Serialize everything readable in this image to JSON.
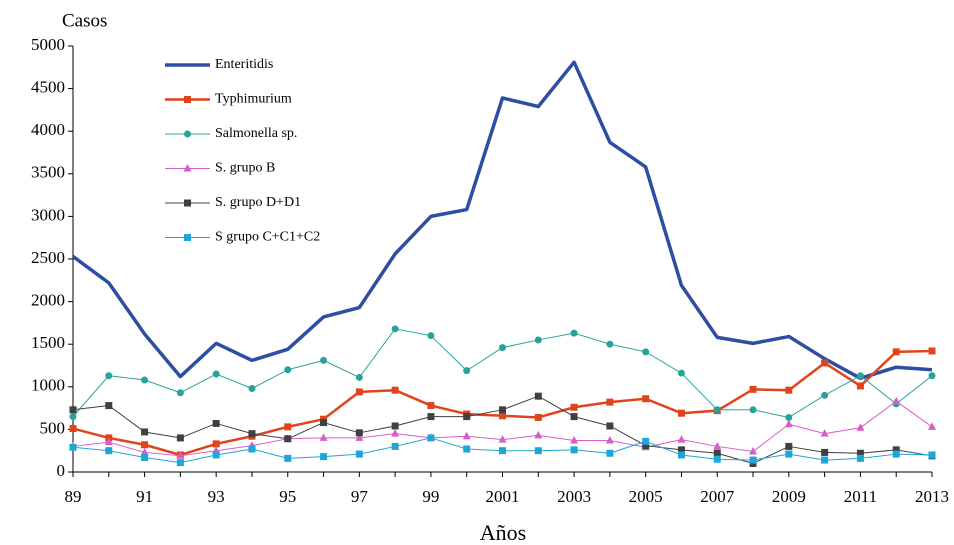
{
  "chart_data": {
    "type": "line",
    "y_label": "Casos",
    "x_label": "Años",
    "categories": [
      "89",
      null,
      "91",
      null,
      "93",
      null,
      "95",
      null,
      "97",
      null,
      "99",
      null,
      "2001",
      null,
      "2003",
      null,
      "2005",
      null,
      "2007",
      null,
      "2009",
      null,
      "2011",
      null,
      "2013"
    ],
    "ylim": [
      0,
      5000
    ],
    "yticks": [
      0,
      500,
      1000,
      1500,
      2000,
      2500,
      3000,
      3500,
      4000,
      4500,
      5000
    ],
    "grid": false,
    "legend": "upper left",
    "series": [
      {
        "name": "Enteritidis",
        "color": "#2e4ea3",
        "marker": "none",
        "line_width": 3.5,
        "values": [
          2530,
          2220,
          1620,
          1120,
          1510,
          1310,
          1440,
          1820,
          1930,
          2560,
          3000,
          3080,
          4390,
          4290,
          4810,
          3870,
          3580,
          2190,
          1580,
          1510,
          1590,
          1330,
          1100,
          1230,
          1200
        ]
      },
      {
        "name": "Typhimurium",
        "color": "#e0441c",
        "marker": "square",
        "line_width": 2.5,
        "values": [
          510,
          400,
          320,
          200,
          330,
          420,
          530,
          620,
          940,
          960,
          780,
          680,
          660,
          640,
          760,
          820,
          860,
          690,
          720,
          970,
          960,
          1280,
          1010,
          1410,
          1420
        ]
      },
      {
        "name": "Salmonella sp.",
        "color": "#29a39a",
        "marker": "circle",
        "line_width": 1,
        "values": [
          650,
          1130,
          1080,
          930,
          1150,
          980,
          1200,
          1310,
          1110,
          1680,
          1600,
          1190,
          1460,
          1550,
          1630,
          1500,
          1410,
          1160,
          730,
          730,
          640,
          900,
          1130,
          800,
          1130
        ]
      },
      {
        "name": "S. grupo B",
        "color": "#d65ec8",
        "marker": "triangle",
        "line_width": 1,
        "values": [
          300,
          350,
          230,
          190,
          250,
          310,
          390,
          400,
          400,
          450,
          400,
          420,
          380,
          430,
          370,
          370,
          290,
          380,
          300,
          240,
          560,
          450,
          520,
          830,
          530
        ]
      },
      {
        "name": "S. grupo D+D1",
        "color": "#404040",
        "marker": "square",
        "line_width": 1,
        "values": [
          730,
          780,
          470,
          400,
          570,
          450,
          390,
          580,
          460,
          540,
          650,
          650,
          730,
          890,
          650,
          540,
          310,
          260,
          220,
          100,
          300,
          230,
          220,
          260,
          190
        ]
      },
      {
        "name": "S grupo C+C1+C2",
        "color": "#1ea6d6",
        "marker": "square",
        "line_width": 1,
        "values": [
          290,
          250,
          170,
          110,
          200,
          270,
          160,
          180,
          210,
          300,
          400,
          270,
          250,
          250,
          260,
          220,
          360,
          200,
          150,
          140,
          210,
          140,
          160,
          210,
          200
        ]
      }
    ]
  }
}
